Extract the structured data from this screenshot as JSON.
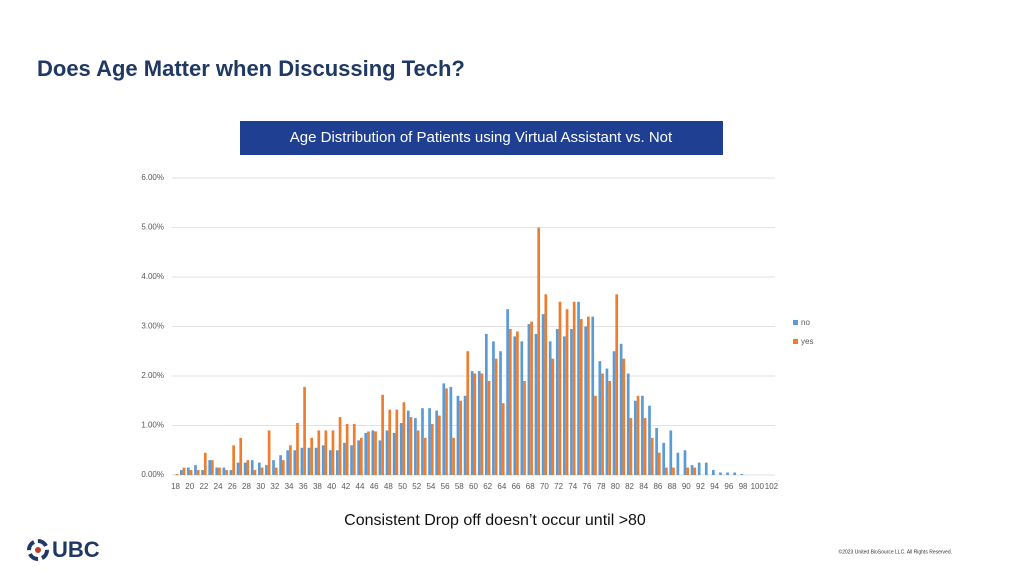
{
  "slide": {
    "title": "Does Age Matter when Discussing Tech?",
    "caption": "Consistent Drop off doesn’t occur until >80",
    "logo": "UBC",
    "copyright": "©2023 United BioSource LLC. All Rights Reserved."
  },
  "chart_data": {
    "type": "bar",
    "title": "Age Distribution of Patients using Virtual Assistant vs. Not",
    "categories": [
      18,
      null,
      20,
      null,
      22,
      null,
      24,
      null,
      26,
      null,
      28,
      null,
      30,
      null,
      32,
      null,
      34,
      null,
      36,
      null,
      38,
      null,
      40,
      null,
      42,
      null,
      44,
      null,
      46,
      null,
      48,
      null,
      50,
      null,
      52,
      null,
      54,
      null,
      56,
      null,
      58,
      null,
      60,
      null,
      62,
      null,
      64,
      null,
      66,
      null,
      68,
      null,
      70,
      null,
      72,
      null,
      74,
      null,
      76,
      null,
      78,
      null,
      80,
      null,
      82,
      null,
      84,
      null,
      86,
      null,
      88,
      null,
      90,
      null,
      92,
      null,
      94,
      null,
      96,
      null,
      98,
      null,
      100,
      null,
      102
    ],
    "series": [
      {
        "name": "no",
        "color": "#5b9bd5",
        "values": [
          0,
          0.1,
          0.15,
          0.2,
          0.1,
          0.3,
          0.15,
          0.15,
          0.1,
          0.25,
          0.25,
          0.3,
          0.25,
          0.2,
          0.3,
          0.4,
          0.5,
          0.5,
          0.55,
          0.55,
          0.55,
          0.6,
          0.5,
          0.5,
          0.65,
          0.6,
          0.7,
          0.85,
          0.9,
          0.7,
          0.9,
          0.85,
          1.05,
          1.3,
          1.15,
          1.35,
          1.35,
          1.3,
          1.85,
          1.78,
          1.6,
          1.6,
          2.1,
          2.1,
          2.85,
          2.7,
          2.5,
          3.35,
          2.8,
          2.7,
          3.05,
          2.85,
          3.25,
          2.7,
          2.95,
          2.8,
          2.95,
          3.5,
          3,
          3.2,
          2.3,
          2.15,
          2.5,
          2.65,
          2.05,
          1.5,
          1.6,
          1.4,
          0.95,
          0.65,
          0.9,
          0.45,
          0.5,
          0.2,
          0.25,
          0.25,
          0.1,
          0.05,
          0.05,
          0.05,
          0.02,
          0,
          0,
          0,
          0
        ]
      },
      {
        "name": "yes",
        "color": "#ed7d31",
        "values": [
          0.02,
          0.15,
          0.1,
          0.1,
          0.45,
          0.3,
          0.15,
          0.1,
          0.6,
          0.75,
          0.3,
          0.1,
          0.15,
          0.9,
          0.15,
          0.3,
          0.6,
          1.05,
          1.78,
          0.75,
          0.9,
          0.9,
          0.9,
          1.17,
          1.03,
          1.03,
          0.75,
          0.88,
          0.88,
          1.62,
          1.32,
          1.32,
          1.47,
          1.17,
          0.9,
          0.75,
          1.03,
          1.2,
          1.75,
          0.75,
          1.5,
          2.5,
          2.05,
          2.05,
          1.9,
          2.35,
          1.45,
          2.95,
          2.9,
          1.9,
          3.1,
          5,
          3.65,
          2.35,
          3.5,
          3.35,
          3.5,
          3.15,
          3.2,
          1.6,
          2.05,
          1.9,
          3.65,
          2.35,
          1.15,
          1.6,
          1.15,
          0.75,
          0.45,
          0.15,
          0.15,
          0,
          0.15,
          0.15,
          0,
          0,
          0,
          0,
          0,
          0,
          0,
          0,
          0,
          0,
          0
        ]
      }
    ],
    "ylim": [
      0,
      6
    ],
    "yticks": [
      {
        "value": 0,
        "label": "0.00%"
      },
      {
        "value": 1,
        "label": "1.00%"
      },
      {
        "value": 2,
        "label": "2.00%"
      },
      {
        "value": 3,
        "label": "3.00%"
      },
      {
        "value": 4,
        "label": "4.00%"
      },
      {
        "value": 5,
        "label": "5.00%"
      },
      {
        "value": 6,
        "label": "6.00%"
      }
    ],
    "grid": true,
    "legend": "right"
  }
}
